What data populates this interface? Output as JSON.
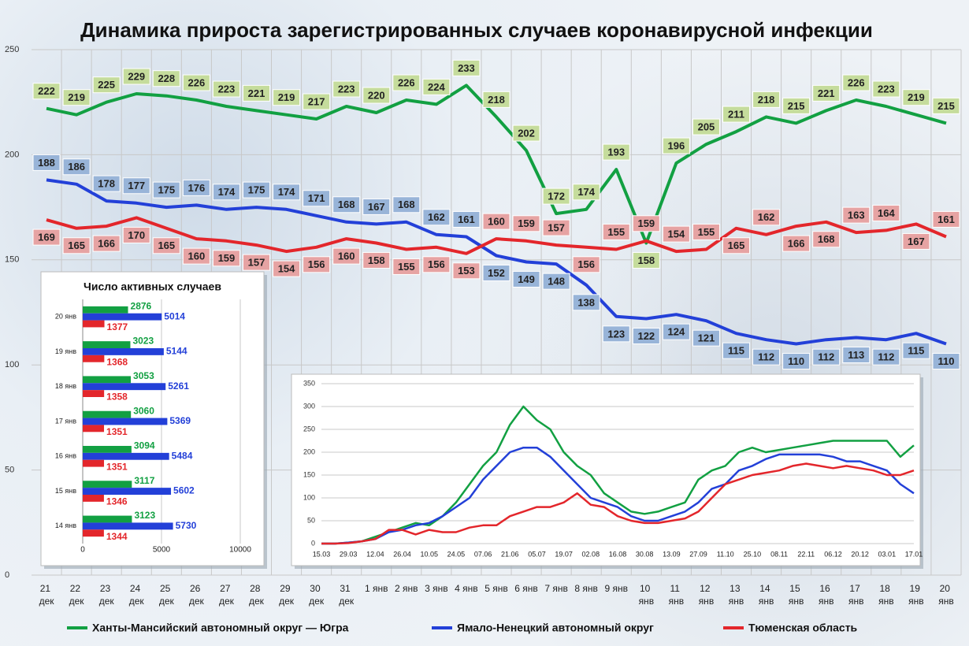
{
  "chart_data": [
    {
      "type": "line",
      "title": "Динамика прироста зарегистрированных случаев коронавирусной инфекции",
      "categories": [
        "21 дек",
        "22 дек",
        "23 дек",
        "24 дек",
        "25 дек",
        "26 дек",
        "27 дек",
        "28 дек",
        "29 дек",
        "30 дек",
        "31 дек",
        "1 янв",
        "2 янв",
        "3 янв",
        "4 янв",
        "5 янв",
        "6 янв",
        "7 янв",
        "8 янв",
        "9 янв",
        "10 янв",
        "11 янв",
        "12 янв",
        "13 янв",
        "14 янв",
        "15 янв",
        "16 янв",
        "17 янв",
        "18 янв",
        "19 янв",
        "20 янв"
      ],
      "series": [
        {
          "name": "Ханты-Мансийский автономный округ — Югра",
          "color": "#12a042",
          "label_color": "#c5dc9c",
          "values": [
            222,
            219,
            225,
            229,
            228,
            226,
            223,
            221,
            219,
            217,
            223,
            220,
            226,
            224,
            233,
            218,
            202,
            172,
            174,
            193,
            158,
            196,
            205,
            211,
            218,
            215,
            221,
            226,
            223,
            219,
            215
          ]
        },
        {
          "name": "Ямало-Ненецкий автономный округ",
          "color": "#2340d8",
          "label_color": "#98b4d8",
          "values": [
            188,
            186,
            178,
            177,
            175,
            176,
            174,
            175,
            174,
            171,
            168,
            167,
            168,
            162,
            161,
            152,
            149,
            148,
            138,
            123,
            122,
            124,
            121,
            115,
            112,
            110,
            112,
            113,
            112,
            115,
            110
          ]
        },
        {
          "name": "Тюменская область",
          "color": "#e3262b",
          "label_color": "#e6a3a3",
          "values": [
            169,
            165,
            166,
            170,
            165,
            160,
            159,
            157,
            154,
            156,
            160,
            158,
            155,
            156,
            153,
            160,
            159,
            157,
            156,
            155,
            159,
            154,
            155,
            165,
            162,
            166,
            168,
            163,
            164,
            167,
            161
          ]
        }
      ],
      "ylim": [
        0,
        250
      ],
      "yticks": [
        0,
        50,
        100,
        150,
        200,
        250
      ],
      "grid": true,
      "data_labels": true,
      "legend": "bottom"
    },
    {
      "type": "bar",
      "orientation": "horizontal",
      "title": "Число активных случаев",
      "categories": [
        "20 янв",
        "19 янв",
        "18 янв",
        "17 янв",
        "16 янв",
        "15 янв",
        "14 янв"
      ],
      "series": [
        {
          "color": "#12a042",
          "values": [
            2876,
            3023,
            3053,
            3060,
            3094,
            3117,
            3123
          ]
        },
        {
          "color": "#2340d8",
          "values": [
            5014,
            5144,
            5261,
            5369,
            5484,
            5602,
            5730
          ]
        },
        {
          "color": "#e3262b",
          "values": [
            1377,
            1368,
            1358,
            1351,
            1351,
            1346,
            1344
          ]
        }
      ],
      "xlim": [
        0,
        10000
      ],
      "xticks": [
        0,
        5000,
        10000
      ],
      "grid": true,
      "data_labels": true
    },
    {
      "type": "line",
      "categories": [
        "15.03",
        null,
        "29.03",
        null,
        "12.04",
        null,
        "26.04",
        null,
        "10.05",
        null,
        "24.05",
        null,
        "07.06",
        null,
        "21.06",
        null,
        "05.07",
        null,
        "19.07",
        null,
        "02.08",
        null,
        "16.08",
        null,
        "30.08",
        null,
        "13.09",
        null,
        "27.09",
        null,
        "11.10",
        null,
        "25.10",
        null,
        "08.11",
        null,
        "22.11",
        null,
        "06.12",
        null,
        "20.12",
        null,
        "03.01",
        null,
        "17.01"
      ],
      "series": [
        {
          "color": "#12a042",
          "values": [
            0,
            0,
            2,
            5,
            15,
            25,
            35,
            45,
            40,
            60,
            90,
            130,
            170,
            200,
            260,
            300,
            270,
            250,
            200,
            170,
            150,
            110,
            90,
            70,
            65,
            70,
            80,
            90,
            140,
            160,
            170,
            200,
            210,
            200,
            205,
            210,
            215,
            220,
            225,
            225,
            225,
            225,
            225,
            190,
            215
          ]
        },
        {
          "color": "#2340d8",
          "values": [
            0,
            0,
            2,
            5,
            10,
            25,
            30,
            40,
            45,
            60,
            80,
            100,
            140,
            170,
            200,
            210,
            210,
            190,
            160,
            130,
            100,
            90,
            80,
            60,
            50,
            50,
            60,
            70,
            90,
            120,
            130,
            160,
            170,
            185,
            195,
            195,
            195,
            195,
            190,
            180,
            180,
            170,
            160,
            130,
            110
          ]
        },
        {
          "color": "#e3262b",
          "values": [
            0,
            0,
            1,
            5,
            10,
            30,
            30,
            20,
            30,
            25,
            25,
            35,
            40,
            40,
            60,
            70,
            80,
            80,
            90,
            110,
            85,
            80,
            60,
            50,
            45,
            45,
            50,
            55,
            70,
            100,
            130,
            140,
            150,
            155,
            160,
            170,
            175,
            170,
            165,
            170,
            165,
            160,
            150,
            150,
            160
          ]
        }
      ],
      "ylim": [
        0,
        350
      ],
      "yticks": [
        0,
        50,
        100,
        150,
        200,
        250,
        300,
        350
      ],
      "grid": true,
      "data_labels": false
    }
  ]
}
